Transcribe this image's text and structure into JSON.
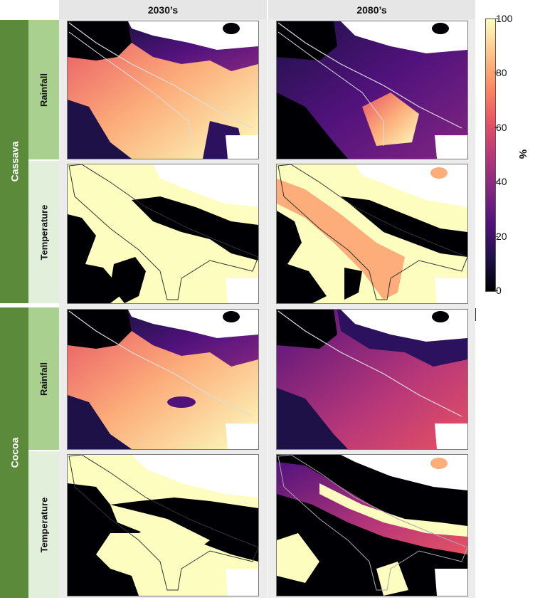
{
  "columns": [
    {
      "label": "2030’s"
    },
    {
      "label": "2080’s"
    }
  ],
  "crops": [
    {
      "label": "Cassava"
    },
    {
      "label": "Cocoa"
    }
  ],
  "variables": {
    "cassava_rainfall": "Rainfall",
    "cassava_temperature": "Temperature",
    "cocoa_rainfall": "Rainfall",
    "cocoa_temperature": "Temperature"
  },
  "colorbar": {
    "label": "%",
    "ticks": [
      "100",
      "80",
      "60",
      "40",
      "20",
      "0"
    ],
    "tick_values": [
      100,
      80,
      60,
      40,
      20,
      0
    ],
    "colormap": "magma",
    "min": 0,
    "max": 100
  },
  "colors": {
    "crop_band": "#5b8a3a",
    "var_band_light": "#a9d08e",
    "var_band_lighter": "#e2efda",
    "header_bg": "#e7e6e6",
    "high": "#fcfdbf",
    "mid": "#e75263",
    "low": "#000004"
  },
  "panels": [
    {
      "crop": "Cassava",
      "variable": "Rainfall",
      "period": "2030’s",
      "dominant": "high"
    },
    {
      "crop": "Cassava",
      "variable": "Rainfall",
      "period": "2080’s",
      "dominant": "low"
    },
    {
      "crop": "Cassava",
      "variable": "Temperature",
      "period": "2030’s",
      "dominant": "high"
    },
    {
      "crop": "Cassava",
      "variable": "Temperature",
      "period": "2080’s",
      "dominant": "high"
    },
    {
      "crop": "Cocoa",
      "variable": "Rainfall",
      "period": "2030’s",
      "dominant": "high"
    },
    {
      "crop": "Cocoa",
      "variable": "Rainfall",
      "period": "2080’s",
      "dominant": "mid"
    },
    {
      "crop": "Cocoa",
      "variable": "Temperature",
      "period": "2030’s",
      "dominant": "low"
    },
    {
      "crop": "Cocoa",
      "variable": "Temperature",
      "period": "2080’s",
      "dominant": "low"
    }
  ]
}
